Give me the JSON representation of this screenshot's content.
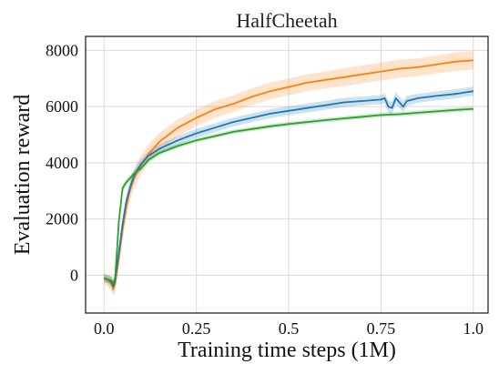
{
  "chart_data": {
    "type": "line",
    "title": "HalfCheetah",
    "xlabel": "Training time steps (1M)",
    "ylabel": "Evaluation reward",
    "xlim": [
      -0.05,
      1.04
    ],
    "ylim": [
      -1350,
      8500
    ],
    "xticks": [
      0.0,
      0.25,
      0.5,
      0.75,
      1.0
    ],
    "xtick_labels": [
      "0.0",
      "0.25",
      "0.5",
      "0.75",
      "1.0"
    ],
    "yticks": [
      0,
      2000,
      4000,
      6000,
      8000
    ],
    "ytick_labels": [
      "0",
      "2000",
      "4000",
      "6000",
      "8000"
    ],
    "grid": true,
    "legend": "none",
    "series": [
      {
        "color": "#ff7f0e",
        "x": [
          0.0,
          0.01,
          0.02,
          0.025,
          0.03,
          0.04,
          0.05,
          0.06,
          0.07,
          0.08,
          0.09,
          0.1,
          0.12,
          0.15,
          0.2,
          0.25,
          0.3,
          0.35,
          0.4,
          0.45,
          0.5,
          0.55,
          0.6,
          0.65,
          0.7,
          0.75,
          0.8,
          0.85,
          0.9,
          0.95,
          1.0
        ],
        "y": [
          -150,
          -200,
          -300,
          -500,
          -300,
          600,
          1600,
          2400,
          3000,
          3400,
          3700,
          3900,
          4300,
          4750,
          5250,
          5600,
          5900,
          6100,
          6350,
          6550,
          6700,
          6850,
          6950,
          7050,
          7150,
          7250,
          7350,
          7400,
          7500,
          7600,
          7650
        ],
        "band": [
          200,
          200,
          250,
          250,
          300,
          350,
          350,
          350,
          350,
          350,
          350,
          350,
          350,
          320,
          300,
          300,
          300,
          300,
          300,
          300,
          300,
          300,
          300,
          320,
          320,
          320,
          320,
          320,
          320,
          330,
          330
        ]
      },
      {
        "color": "#1f77b4",
        "x": [
          0.0,
          0.01,
          0.02,
          0.025,
          0.03,
          0.04,
          0.05,
          0.06,
          0.07,
          0.08,
          0.09,
          0.1,
          0.12,
          0.15,
          0.2,
          0.25,
          0.3,
          0.35,
          0.4,
          0.45,
          0.5,
          0.55,
          0.6,
          0.65,
          0.7,
          0.75,
          0.76,
          0.77,
          0.78,
          0.79,
          0.8,
          0.81,
          0.82,
          0.85,
          0.9,
          0.95,
          1.0
        ],
        "y": [
          -100,
          -150,
          -250,
          -400,
          -200,
          800,
          1800,
          2600,
          3100,
          3500,
          3750,
          3950,
          4250,
          4500,
          4800,
          5050,
          5250,
          5450,
          5600,
          5750,
          5850,
          5950,
          6050,
          6150,
          6200,
          6250,
          6300,
          6000,
          5950,
          6300,
          6150,
          6000,
          6200,
          6300,
          6380,
          6450,
          6550
        ],
        "band": [
          150,
          150,
          200,
          200,
          250,
          250,
          250,
          250,
          220,
          200,
          200,
          180,
          160,
          160,
          160,
          160,
          160,
          160,
          160,
          160,
          160,
          160,
          160,
          160,
          160,
          160,
          180,
          220,
          220,
          220,
          200,
          200,
          180,
          160,
          160,
          160,
          160
        ]
      },
      {
        "color": "#2ca02c",
        "x": [
          0.0,
          0.01,
          0.02,
          0.025,
          0.03,
          0.035,
          0.04,
          0.05,
          0.06,
          0.07,
          0.08,
          0.09,
          0.1,
          0.12,
          0.15,
          0.2,
          0.25,
          0.3,
          0.35,
          0.4,
          0.45,
          0.5,
          0.55,
          0.6,
          0.65,
          0.7,
          0.75,
          0.8,
          0.85,
          0.9,
          0.95,
          1.0
        ],
        "y": [
          -100,
          -150,
          -200,
          -300,
          -100,
          900,
          1900,
          3100,
          3300,
          3450,
          3600,
          3700,
          3800,
          4100,
          4350,
          4600,
          4800,
          4950,
          5100,
          5200,
          5300,
          5380,
          5450,
          5520,
          5580,
          5640,
          5700,
          5730,
          5780,
          5830,
          5880,
          5920
        ],
        "band": [
          120,
          120,
          150,
          150,
          150,
          150,
          150,
          150,
          120,
          110,
          100,
          100,
          100,
          90,
          90,
          80,
          80,
          80,
          80,
          80,
          80,
          80,
          80,
          80,
          80,
          80,
          80,
          80,
          80,
          80,
          80,
          80
        ]
      }
    ]
  }
}
